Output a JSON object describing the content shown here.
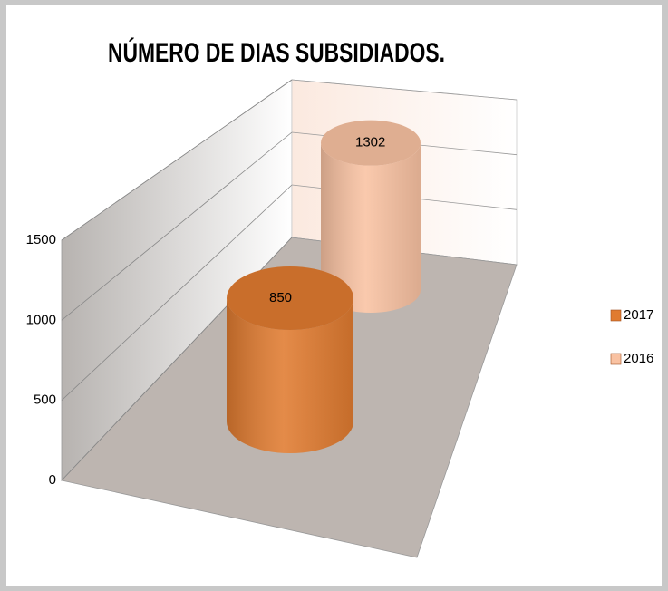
{
  "chart_data": {
    "type": "bar",
    "title": "NÚMERO DE DIAS SUBSIDIADOS.",
    "categories": [
      null
    ],
    "series": [
      {
        "name": "2017",
        "color": "#e07b30",
        "values": [
          850
        ]
      },
      {
        "name": "2016",
        "color": "#f9c2a2",
        "values": [
          1302
        ]
      }
    ],
    "ylim": [
      0,
      1500
    ],
    "yticks": [
      0,
      500,
      1000,
      1500
    ],
    "grid": true,
    "legend": "right"
  }
}
